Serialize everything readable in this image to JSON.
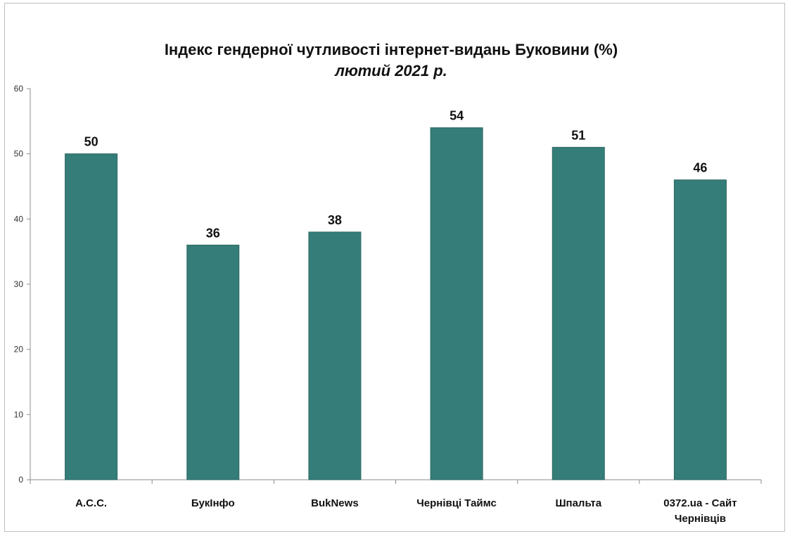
{
  "chart_data": {
    "type": "bar",
    "title": "Індекс гендерної чутливості інтернет-видань Буковини (%)",
    "subtitle": "лютий 2021 р.",
    "categories": [
      "А.С.С.",
      "БукІнфо",
      "BukNews",
      "Чернівці Таймс",
      "Шпальта",
      "0372.ua - Сайт Чернівців"
    ],
    "category_lines": [
      [
        "А.С.С."
      ],
      [
        "БукІнфо"
      ],
      [
        "BukNews"
      ],
      [
        "Чернівці Таймс"
      ],
      [
        "Шпальта"
      ],
      [
        "0372.ua - Сайт",
        "Чернівців"
      ]
    ],
    "values": [
      50,
      36,
      38,
      54,
      51,
      46
    ],
    "data_labels": [
      "50",
      "36",
      "38",
      "54",
      "51",
      "46"
    ],
    "y_ticks": [
      "0",
      "10",
      "20",
      "30",
      "40",
      "50",
      "60"
    ],
    "ylim": [
      0,
      60
    ],
    "xlabel": "",
    "ylabel": "",
    "legend": "none",
    "grid": false,
    "bar_color": "#357d78"
  }
}
